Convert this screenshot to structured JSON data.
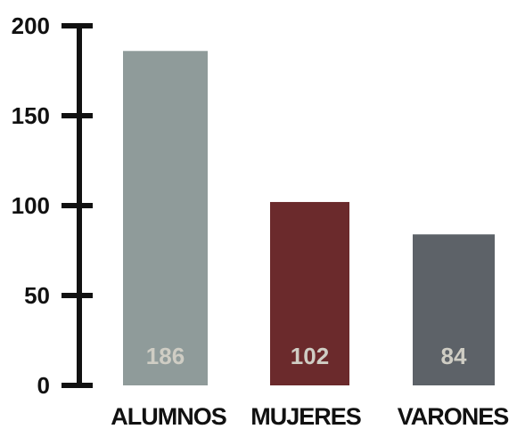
{
  "chart_data": {
    "type": "bar",
    "categories": [
      "ALUMNOS",
      "MUJERES",
      "VARONES"
    ],
    "values": [
      186,
      102,
      84
    ],
    "value_labels": [
      "186",
      "102",
      "84"
    ],
    "ylim": [
      0,
      200
    ],
    "yticks": [
      0,
      50,
      100,
      150,
      200
    ],
    "ytick_labels": [
      "0",
      "50",
      "100",
      "150",
      "200"
    ],
    "colors": [
      "#8f9b9a",
      "#6b2a2c",
      "#5d6268"
    ],
    "grid": false,
    "legend": "none"
  }
}
